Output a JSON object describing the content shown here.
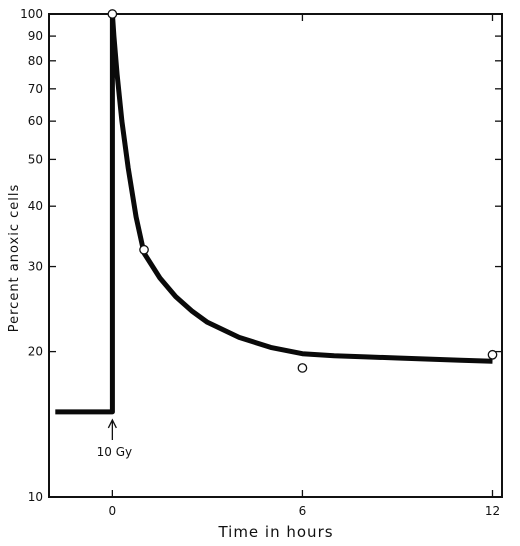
{
  "chart_data": {
    "type": "line",
    "title": "",
    "xlabel": "Time  in  hours",
    "ylabel": "Percent  anoxic  cells",
    "y_scale": "log",
    "xlim": [
      -2,
      12.3
    ],
    "ylim": [
      10,
      100
    ],
    "x_ticks": [
      0,
      6,
      12
    ],
    "x_tick_labels": [
      "0",
      "6",
      "12"
    ],
    "y_ticks": [
      10,
      20,
      30,
      40,
      50,
      60,
      70,
      80,
      90,
      100
    ],
    "y_tick_labels": [
      "10",
      "20",
      "30",
      "40",
      "50",
      "60",
      "70",
      "80",
      "90",
      "100"
    ],
    "grid": false,
    "annotation": {
      "text": "10 Gy",
      "x": 0
    },
    "series": [
      {
        "kind": "curve",
        "x": [
          -1.8,
          0,
          0,
          0.05,
          0.15,
          0.3,
          0.5,
          0.75,
          1,
          1.5,
          2,
          2.5,
          3,
          4,
          5,
          6,
          7,
          8,
          9,
          10,
          11,
          12
        ],
        "y": [
          15,
          15,
          100,
          90,
          75,
          60,
          48,
          38,
          32,
          28.4,
          26,
          24.3,
          23,
          21.4,
          20.4,
          19.8,
          19.6,
          19.5,
          19.4,
          19.3,
          19.2,
          19.1
        ]
      },
      {
        "kind": "points",
        "x": [
          0,
          1,
          6,
          12
        ],
        "y": [
          100,
          32.5,
          18.5,
          19.7
        ]
      }
    ]
  }
}
